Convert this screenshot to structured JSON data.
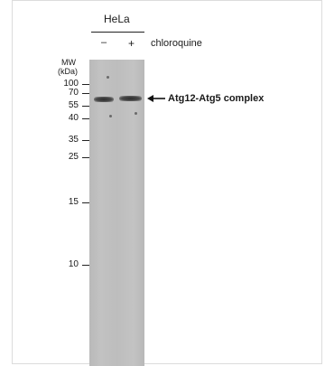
{
  "figure": {
    "cell_line": "HeLa",
    "lane_signs": [
      "–",
      "+"
    ],
    "treatment_label": "chloroquine",
    "mw_title_line1": "MW",
    "mw_title_line2": "(kDa)",
    "mw_markers": [
      "100",
      "70",
      "55",
      "40",
      "35",
      "25",
      "15",
      "10"
    ],
    "band_annotation": "Atg12-Atg5 complex"
  }
}
